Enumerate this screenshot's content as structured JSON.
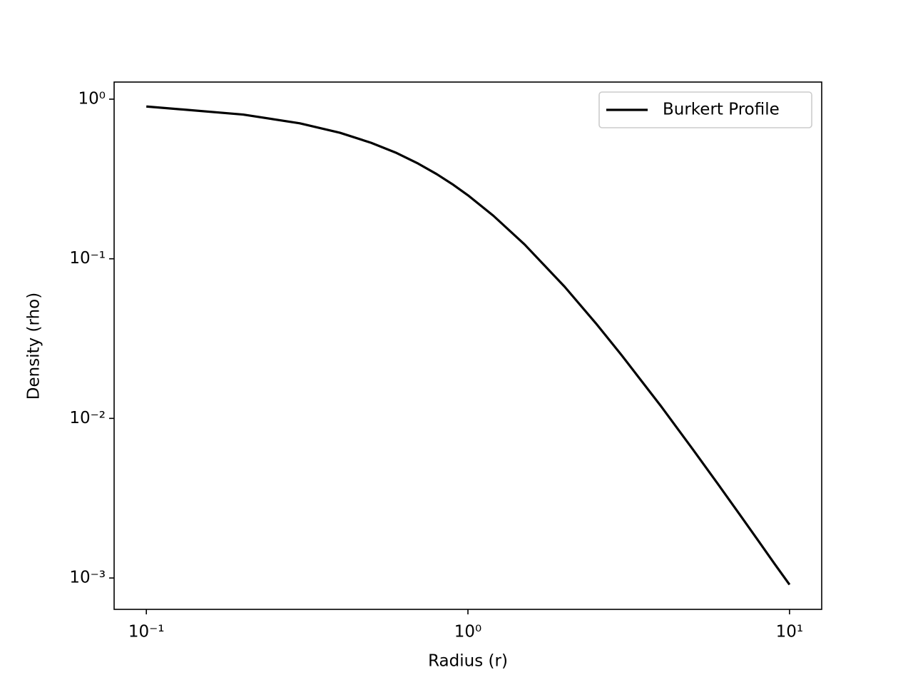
{
  "chart_data": {
    "type": "line",
    "xlabel": "Radius (r)",
    "ylabel": "Density (rho)",
    "x": [
      0.1,
      0.2,
      0.3,
      0.4,
      0.5,
      0.6,
      0.7,
      0.8,
      0.9,
      1.0,
      1.2,
      1.5,
      2,
      2.5,
      3,
      4,
      5,
      6,
      7,
      8,
      9,
      10
    ],
    "series": [
      {
        "name": "Burkert Profile",
        "color": "#000000",
        "values": [
          0.9,
          0.801,
          0.706,
          0.616,
          0.533,
          0.46,
          0.395,
          0.339,
          0.291,
          0.25,
          0.186,
          0.123,
          0.0667,
          0.0394,
          0.025,
          0.0118,
          0.00641,
          0.00386,
          0.0025,
          0.00171,
          0.00122,
          0.000909
        ]
      }
    ],
    "xscale": "log",
    "yscale": "log",
    "xlim": [
      0.0794,
      12.59
    ],
    "ylim": [
      0.000636,
      1.28
    ],
    "xticks": [
      {
        "value": 0.1,
        "label": "10⁻¹"
      },
      {
        "value": 1,
        "label": "10⁰"
      },
      {
        "value": 10,
        "label": "10¹"
      }
    ],
    "yticks": [
      {
        "value": 0.001,
        "label": "10⁻³"
      },
      {
        "value": 0.01,
        "label": "10⁻²"
      },
      {
        "value": 0.1,
        "label": "10⁻¹"
      },
      {
        "value": 1,
        "label": "10⁰"
      }
    ],
    "grid": false,
    "legend": "upper right"
  }
}
